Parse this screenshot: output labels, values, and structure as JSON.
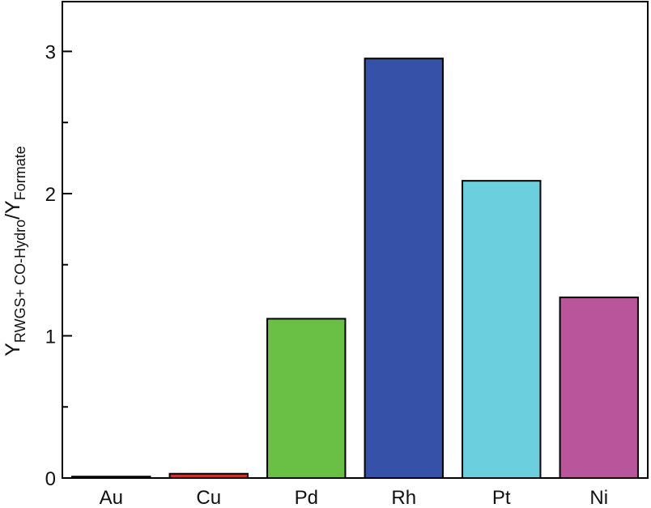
{
  "chart_data": {
    "type": "bar",
    "categories": [
      "Au",
      "Cu",
      "Pd",
      "Rh",
      "Pt",
      "Ni"
    ],
    "values": [
      0.01,
      0.03,
      1.12,
      2.95,
      2.09,
      1.27
    ],
    "colors": [
      "#c9c9c9",
      "#d0312d",
      "#6abf45",
      "#3652a8",
      "#6ccfdd",
      "#b9559b"
    ],
    "ylabel": {
      "main": "Y",
      "sub1": "RWGS+ CO-Hydro",
      "slash": "/Y",
      "sub2": "Formate"
    },
    "ylim": [
      0,
      3.35
    ],
    "yticks": [
      "0",
      "1",
      "2",
      "3"
    ],
    "ytick_values": [
      0,
      1,
      2,
      3
    ],
    "grid": false,
    "legend": "none"
  }
}
